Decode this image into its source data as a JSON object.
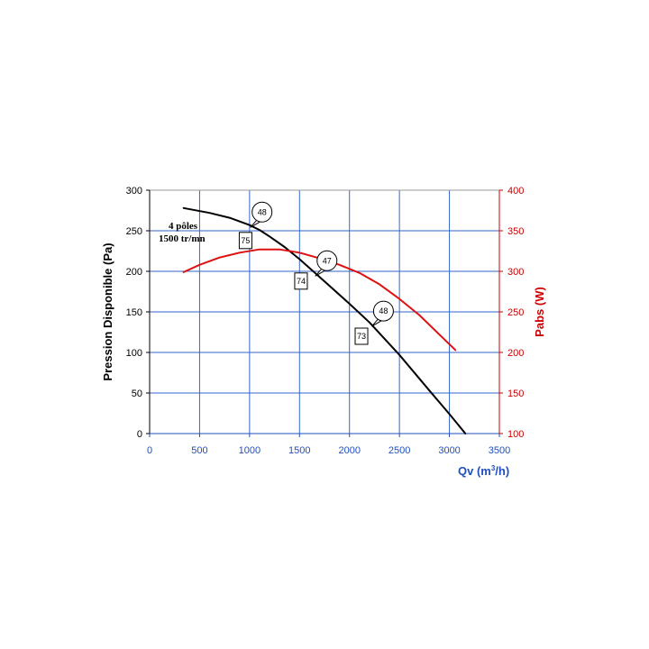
{
  "chart_data": {
    "type": "line",
    "xlabel_main": "Qv (m",
    "xlabel_sup": "3",
    "xlabel_end": "/h)",
    "ylabel_left": "Pression Disponible (Pa)",
    "ylabel_right": "Pabs (W)",
    "xlim": [
      0,
      3500
    ],
    "ylim_left": [
      0,
      300
    ],
    "ylim_right": [
      100,
      400
    ],
    "x_ticks": [
      "0",
      "500",
      "1000",
      "1500",
      "2000",
      "2500",
      "3000",
      "3500"
    ],
    "y_left_ticks": [
      "0",
      "50",
      "100",
      "150",
      "200",
      "250",
      "300"
    ],
    "y_right_ticks": [
      "100",
      "150",
      "200",
      "250",
      "300",
      "350",
      "400"
    ],
    "grid": true,
    "annotation": {
      "line1": "4 pôles",
      "line2": "1500 tr/mn"
    },
    "series": [
      {
        "axis": "left",
        "color": "#000000",
        "points": [
          [
            340,
            278
          ],
          [
            600,
            272
          ],
          [
            800,
            266
          ],
          [
            1000,
            257
          ],
          [
            1100,
            251
          ],
          [
            1200,
            243
          ],
          [
            1350,
            230
          ],
          [
            1500,
            215
          ],
          [
            1700,
            193
          ],
          [
            2000,
            160
          ],
          [
            2200,
            137
          ],
          [
            2500,
            97
          ],
          [
            2800,
            53
          ],
          [
            3000,
            24
          ],
          [
            3160,
            0
          ]
        ]
      },
      {
        "axis": "right",
        "color": "#dd1111",
        "points": [
          [
            340,
            299
          ],
          [
            500,
            308
          ],
          [
            700,
            317
          ],
          [
            900,
            323
          ],
          [
            1100,
            327
          ],
          [
            1300,
            327
          ],
          [
            1500,
            323
          ],
          [
            1700,
            316
          ],
          [
            1900,
            308
          ],
          [
            2100,
            298
          ],
          [
            2300,
            284
          ],
          [
            2500,
            266
          ],
          [
            2700,
            246
          ],
          [
            2900,
            222
          ],
          [
            3060,
            203
          ]
        ]
      }
    ],
    "noise_labels": [
      {
        "text": "48",
        "x": 1125,
        "y": 273
      },
      {
        "text": "47",
        "x": 1775,
        "y": 213
      },
      {
        "text": "48",
        "x": 2340,
        "y": 151
      }
    ],
    "efficiency_labels": [
      {
        "text": "75",
        "x": 960,
        "y": 238
      },
      {
        "text": "74",
        "x": 1515,
        "y": 188
      },
      {
        "text": "73",
        "x": 2120,
        "y": 120
      }
    ]
  }
}
